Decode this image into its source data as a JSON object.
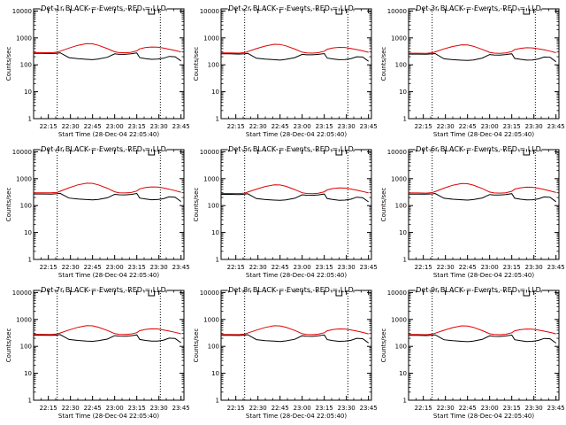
{
  "chart_data": {
    "type": "line",
    "layout": "3x3 grid",
    "shared": {
      "x_tick_labels": [
        "22:15",
        "22:30",
        "22:45",
        "23:00",
        "23:15",
        "23:30",
        "23:45"
      ],
      "x_ticks_minutes_after_2205": [
        10,
        25,
        40,
        55,
        70,
        85,
        100
      ],
      "xlim_minutes_after_2205": [
        0,
        102
      ],
      "xlabel": "Start Time (28-Dec-04 22:05:40)",
      "ylabel": "Counts/sec",
      "yscale": "log",
      "ylim": [
        1,
        12000
      ],
      "y_tick_labels": [
        "1",
        "10",
        "100",
        "1000",
        "10000"
      ],
      "y_tick_values": [
        1,
        10,
        100,
        1000,
        10000
      ],
      "vertical_dotted_lines_minutes": [
        16,
        86
      ],
      "top_marker_minutes": [
        78,
        82
      ],
      "colors": {
        "events": "#000000",
        "lld": "#e00000"
      },
      "x_minutes": [
        0,
        6,
        12,
        16,
        18,
        24,
        30,
        36,
        40,
        44,
        50,
        55,
        58,
        62,
        66,
        70,
        72,
        76,
        80,
        84,
        88,
        92,
        96,
        100
      ]
    },
    "panels": [
      {
        "title": "Det 1r BLACK = Events, RED = LLD",
        "series": [
          {
            "name": "Events",
            "values": [
              265,
              265,
              262,
              270,
              280,
              185,
              170,
              160,
              155,
              165,
              190,
              255,
              245,
              245,
              255,
              275,
              185,
              170,
              160,
              162,
              175,
              205,
              200,
              140
            ]
          },
          {
            "name": "LLD",
            "values": [
              285,
              285,
              282,
              295,
              320,
              420,
              530,
              610,
              600,
              530,
              400,
              305,
              285,
              280,
              290,
              330,
              390,
              440,
              460,
              455,
              420,
              380,
              340,
              300
            ]
          }
        ]
      },
      {
        "title": "Det 2r BLACK = Events, RED = LLD",
        "series": [
          {
            "name": "Events",
            "values": [
              255,
              255,
              250,
              258,
              268,
              175,
              162,
              155,
              150,
              160,
              185,
              245,
              235,
              235,
              245,
              262,
              178,
              165,
              155,
              158,
              170,
              200,
              195,
              135
            ]
          },
          {
            "name": "LLD",
            "values": [
              275,
              275,
              272,
              285,
              310,
              400,
              500,
              580,
              570,
              505,
              385,
              295,
              278,
              272,
              282,
              320,
              378,
              425,
              445,
              440,
              405,
              368,
              330,
              290
            ]
          }
        ]
      },
      {
        "title": "Det 3r BLACK = Events, RED = LLD",
        "series": [
          {
            "name": "Events",
            "values": [
              250,
              250,
              246,
              255,
              262,
              168,
              155,
              148,
              145,
              152,
              178,
              240,
              232,
              230,
              240,
              258,
              172,
              160,
              150,
              152,
              165,
              195,
              190,
              130
            ]
          },
          {
            "name": "LLD",
            "values": [
              270,
              270,
              266,
              280,
              302,
              390,
              480,
              555,
              550,
              490,
              375,
              290,
              272,
              268,
              278,
              312,
              368,
              410,
              430,
              425,
              395,
              360,
              322,
              282
            ]
          }
        ]
      },
      {
        "title": "Det 4r BLACK = Events, RED = LLD",
        "series": [
          {
            "name": "Events",
            "values": [
              270,
              270,
              268,
              275,
              285,
              190,
              175,
              168,
              162,
              170,
              195,
              262,
              252,
              250,
              260,
              282,
              190,
              176,
              165,
              168,
              180,
              212,
              205,
              142
            ]
          },
          {
            "name": "LLD",
            "values": [
              300,
              300,
              298,
              312,
              340,
              460,
              590,
              680,
              670,
              590,
              440,
              325,
              300,
              295,
              305,
              350,
              420,
              470,
              495,
              490,
              450,
              405,
              360,
              315
            ]
          }
        ]
      },
      {
        "title": "Det 5r BLACK = Events, RED = LLD",
        "series": [
          {
            "name": "Events",
            "values": [
              262,
              262,
              258,
              266,
              276,
              182,
              168,
              160,
              156,
              164,
              188,
              252,
              242,
              240,
              250,
              270,
              182,
              168,
              158,
              160,
              172,
              205,
              198,
              138
            ]
          },
          {
            "name": "LLD",
            "values": [
              282,
              282,
              280,
              292,
              316,
              410,
              515,
              595,
              585,
              520,
              395,
              300,
              282,
              278,
              288,
              326,
              385,
              432,
              452,
              448,
              412,
              374,
              336,
              296
            ]
          }
        ]
      },
      {
        "title": "Det 6r BLACK = Events, RED = LLD",
        "series": [
          {
            "name": "Events",
            "values": [
              268,
              268,
              265,
              272,
              282,
              188,
              172,
              165,
              160,
              168,
              192,
              258,
              248,
              246,
              256,
              278,
              188,
              172,
              162,
              165,
              178,
              210,
              202,
              140
            ]
          },
          {
            "name": "LLD",
            "values": [
              295,
              295,
              292,
              305,
              332,
              445,
              570,
              660,
              650,
              575,
              430,
              318,
              295,
              290,
              300,
              342,
              410,
              460,
              485,
              480,
              440,
              398,
              352,
              308
            ]
          }
        ]
      },
      {
        "title": "Det 7r BLACK = Events, RED = LLD",
        "series": [
          {
            "name": "Events",
            "values": [
              260,
              260,
              256,
              264,
              274,
              180,
              166,
              158,
              154,
              162,
              186,
              250,
              240,
              238,
              248,
              268,
              180,
              166,
              156,
              158,
              170,
              202,
              196,
              136
            ]
          },
          {
            "name": "LLD",
            "values": [
              280,
              280,
              276,
              290,
              314,
              405,
              510,
              590,
              580,
              515,
              392,
              298,
              280,
              276,
              286,
              324,
              382,
              428,
              448,
              444,
              410,
              372,
              334,
              294
            ]
          }
        ]
      },
      {
        "title": "Det 8r BLACK = Events, RED = LLD",
        "series": [
          {
            "name": "Events",
            "values": [
              258,
              258,
              254,
              262,
              272,
              178,
              164,
              156,
              152,
              160,
              184,
              248,
              238,
              236,
              246,
              266,
              178,
              164,
              154,
              156,
              168,
              200,
              194,
              134
            ]
          },
          {
            "name": "LLD",
            "values": [
              278,
              278,
              274,
              288,
              312,
              402,
              505,
              585,
              575,
              512,
              390,
              296,
              278,
              274,
              284,
              322,
              380,
              425,
              445,
              441,
              408,
              370,
              332,
              292
            ]
          }
        ]
      },
      {
        "title": "Det 9r BLACK = Events, RED = LLD",
        "series": [
          {
            "name": "Events",
            "values": [
              255,
              255,
              252,
              260,
              270,
              176,
              162,
              154,
              150,
              158,
              182,
              246,
              236,
              234,
              244,
              264,
              176,
              162,
              152,
              154,
              166,
              198,
              192,
              132
            ]
          },
          {
            "name": "LLD",
            "values": [
              275,
              275,
              272,
              286,
              310,
              398,
              500,
              578,
              570,
              508,
              386,
              294,
              276,
              272,
              282,
              320,
              378,
              422,
              442,
              438,
              405,
              368,
              330,
              290
            ]
          }
        ]
      }
    ]
  }
}
